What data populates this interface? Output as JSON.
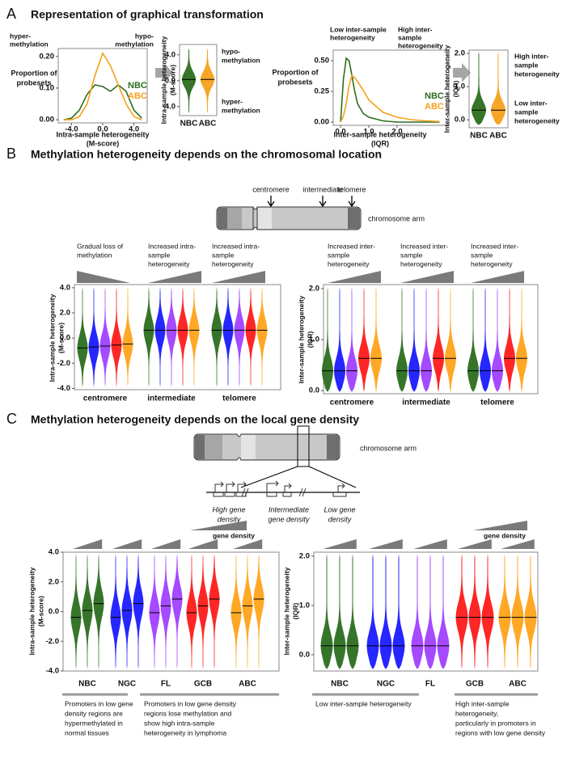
{
  "panel_a": {
    "label": "A",
    "title": "Representation of graphical transformation",
    "plots": [
      {
        "type": "density",
        "header_left": [
          "hyper-",
          "methylation"
        ],
        "header_right": [
          "hypo-",
          "methylation"
        ],
        "ylabel": [
          "Proportion of",
          "probesets"
        ],
        "xlabel": [
          "Intra-sample heterogeneity",
          "(M-score)"
        ],
        "xlim": [
          -5.7,
          5.7
        ],
        "xticks": [
          {
            "value": -4,
            "label": "-4.0"
          },
          {
            "value": 0,
            "label": "0.0"
          },
          {
            "value": 4,
            "label": "4.0"
          }
        ],
        "ylim": [
          -0.01,
          0.225
        ],
        "yticks": [
          {
            "value": 0,
            "label": "0.00"
          },
          {
            "value": 0.1,
            "label": "0.10"
          },
          {
            "value": 0.2,
            "label": "0.20"
          }
        ],
        "x": [
          -5,
          -4,
          -3,
          -2,
          -1,
          0,
          1,
          2,
          3,
          4,
          5
        ],
        "series": [
          {
            "name": "NBC",
            "color": "#2b6e1e",
            "values": [
              0,
              0.005,
              0.03,
              0.08,
              0.11,
              0.105,
              0.09,
              0.11,
              0.09,
              0.03,
              0.005
            ]
          },
          {
            "name": "ABC",
            "color": "#f5a01a",
            "values": [
              0,
              0,
              0.01,
              0.05,
              0.14,
              0.21,
              0.17,
              0.11,
              0.05,
              0.01,
              0
            ]
          }
        ]
      },
      {
        "type": "violin",
        "ylabel": [
          "Intra-sample heterogeneity",
          "(M-score)"
        ],
        "ylim": [
          -5.4,
          5.6
        ],
        "yticks": [
          {
            "value": 4,
            "label": "4.0"
          },
          {
            "value": 0,
            "label": "0.0"
          },
          {
            "value": -4,
            "label": "-4.0"
          }
        ],
        "categories": [
          "NBC",
          "ABC"
        ],
        "colors": [
          "#2b6e1e",
          "#f5a01a"
        ],
        "side_top": [
          "hypo-",
          "methylation"
        ],
        "side_bottom": [
          "hyper-",
          "methylation"
        ]
      },
      {
        "type": "density",
        "header_left": [
          "Low inter-sample",
          "heterogeneity"
        ],
        "header_right": [
          "High inter-",
          "sample",
          "heterogeneity"
        ],
        "ylabel": [
          "Proportion of",
          "probesets"
        ],
        "xlabel": [
          "Inter-sample heterogeneity",
          "(IQR)"
        ],
        "xlim": [
          -0.26,
          3.83
        ],
        "xticks": [
          {
            "value": 0,
            "label": "0.0"
          },
          {
            "value": 1,
            "label": "1.0"
          },
          {
            "value": 2,
            "label": "2.0"
          }
        ],
        "ylim": [
          -0.026,
          0.586
        ],
        "yticks": [
          {
            "value": 0,
            "label": "0.00"
          },
          {
            "value": 0.25,
            "label": "0.25"
          },
          {
            "value": 0.5,
            "label": "0.50"
          }
        ],
        "x": [
          0,
          0.1,
          0.2,
          0.3,
          0.4,
          0.5,
          0.6,
          0.8,
          1.0,
          1.5,
          2.0,
          2.5,
          3.0,
          3.5
        ],
        "series": [
          {
            "name": "NBC",
            "color": "#2b6e1e",
            "values": [
              0,
              0.35,
              0.52,
              0.5,
              0.38,
              0.25,
              0.15,
              0.07,
              0.04,
              0.01,
              0,
              0,
              0,
              0
            ]
          },
          {
            "name": "ABC",
            "color": "#f5a01a",
            "values": [
              0,
              0.05,
              0.15,
              0.3,
              0.38,
              0.36,
              0.33,
              0.26,
              0.18,
              0.08,
              0.04,
              0.02,
              0.01,
              0.005
            ]
          }
        ]
      },
      {
        "type": "violin",
        "ylabel": [
          "Inter-sample heterogeneity",
          "(IQR)"
        ],
        "ylim": [
          -0.24,
          2.1
        ],
        "yticks": [
          {
            "value": 2,
            "label": "2.0"
          },
          {
            "value": 1,
            "label": "1.0"
          },
          {
            "value": 0,
            "label": "0.0"
          }
        ],
        "categories": [
          "NBC",
          "ABC"
        ],
        "colors": [
          "#2b6e1e",
          "#f5a01a"
        ],
        "side_top": [
          "High inter-",
          "sample",
          "heterogeneity"
        ],
        "side_bottom": [
          "Low inter-",
          "sample",
          "heterogeneity"
        ]
      }
    ]
  },
  "panel_b": {
    "label": "B",
    "title": "Methylation heterogeneity depends on the chromosomal location",
    "diagram": {
      "labels": [
        "centromere",
        "intermediate",
        "telomere"
      ],
      "arm": "chromosome arm"
    },
    "plots": [
      {
        "type": "violin_groups",
        "notes": [
          [
            "Gradual loss of",
            "methylation"
          ],
          [
            "Increased intra-",
            "sample",
            "heterogeneity"
          ],
          [
            "Increased intra-",
            "sample",
            "heterogeneity"
          ]
        ],
        "ylabel": [
          "Intra-sample heterogeneity",
          "(M-score)"
        ],
        "ylim": [
          -4.1,
          4.25
        ],
        "yticks": [
          {
            "value": 4,
            "label": "4.0"
          },
          {
            "value": 2,
            "label": "2.0"
          },
          {
            "value": 0,
            "label": "0.0"
          },
          {
            "value": -2,
            "label": "-2.0"
          },
          {
            "value": -4,
            "label": "-4.0"
          }
        ],
        "groups": [
          "centromere",
          "intermediate",
          "telomere"
        ],
        "violin_colors": [
          "#2b6e1e",
          "#1a1aff",
          "#a040ff",
          "#ff1a1a",
          "#ffa31a"
        ]
      },
      {
        "type": "violin_groups",
        "notes": [
          [
            "Increased inter-",
            "sample",
            "heterogeneity"
          ],
          [
            "Increased inter-",
            "sample",
            "heterogeneity"
          ],
          [
            "Increased inter-",
            "sample",
            "heterogeneity"
          ]
        ],
        "ylabel": [
          "Inter-sample heterogeneity",
          "(IQR)"
        ],
        "ylim": [
          -0.06,
          2.08
        ],
        "yticks": [
          {
            "value": 2,
            "label": "2.0"
          },
          {
            "value": 1,
            "label": "1.0"
          },
          {
            "value": 0,
            "label": "0.0"
          }
        ],
        "groups": [
          "centromere",
          "intermediate",
          "telomere"
        ],
        "violin_colors": [
          "#2b6e1e",
          "#1a1aff",
          "#a040ff",
          "#ff1a1a",
          "#ffa31a"
        ]
      }
    ]
  },
  "panel_c": {
    "label": "C",
    "title": "Methylation heterogeneity depends on the local gene density",
    "diagram": {
      "arm": "chromosome arm",
      "densities": [
        [
          "High gene",
          "density"
        ],
        [
          "Intermediate",
          "gene density"
        ],
        [
          "Low gene",
          "density"
        ]
      ]
    },
    "plots": [
      {
        "type": "violin_groups",
        "gene_density": "gene density",
        "ylabel": [
          "Intra-sample heterogeneity",
          "(M-score)"
        ],
        "ylim": [
          -4,
          4
        ],
        "yticks": [
          {
            "value": 4,
            "label": "4.0"
          },
          {
            "value": 2,
            "label": "2.0"
          },
          {
            "value": 0,
            "label": "0.0"
          },
          {
            "value": -2,
            "label": "-2.0"
          },
          {
            "value": -4,
            "label": "-4.0"
          }
        ],
        "groups": [
          "NBC",
          "NGC",
          "FL",
          "GCB",
          "ABC"
        ],
        "group_colors": [
          "#2b6e1e",
          "#1a1aff",
          "#a040ff",
          "#ff1a1a",
          "#ffa31a"
        ],
        "notes": [
          [
            "Promoters in low gene",
            "density regions are",
            "hypermethylated in",
            "normal tissues"
          ],
          [
            "Promoters in low gene density",
            "regions lose methylation and",
            "show high intra-sample",
            "heterogeneity in lymphoma"
          ]
        ]
      },
      {
        "type": "violin_groups",
        "gene_density": "gene density",
        "ylabel": [
          "Inter-sample heterogeneity",
          "(IQR)"
        ],
        "ylim": [
          -0.33,
          2.08
        ],
        "yticks": [
          {
            "value": 2,
            "label": "2.0"
          },
          {
            "value": 1,
            "label": "1.0"
          },
          {
            "value": 0,
            "label": "0.0"
          }
        ],
        "groups": [
          "NBC",
          "NGC",
          "FL",
          "GCB",
          "ABC"
        ],
        "group_colors": [
          "#2b6e1e",
          "#1a1aff",
          "#a040ff",
          "#ff1a1a",
          "#ffa31a"
        ],
        "notes": [
          [
            "Low inter-sample heterogeneity"
          ],
          [
            "High inter-sample",
            "heterogeneity,",
            "particularly in promoters in",
            "regions with low gene density"
          ]
        ]
      }
    ]
  }
}
